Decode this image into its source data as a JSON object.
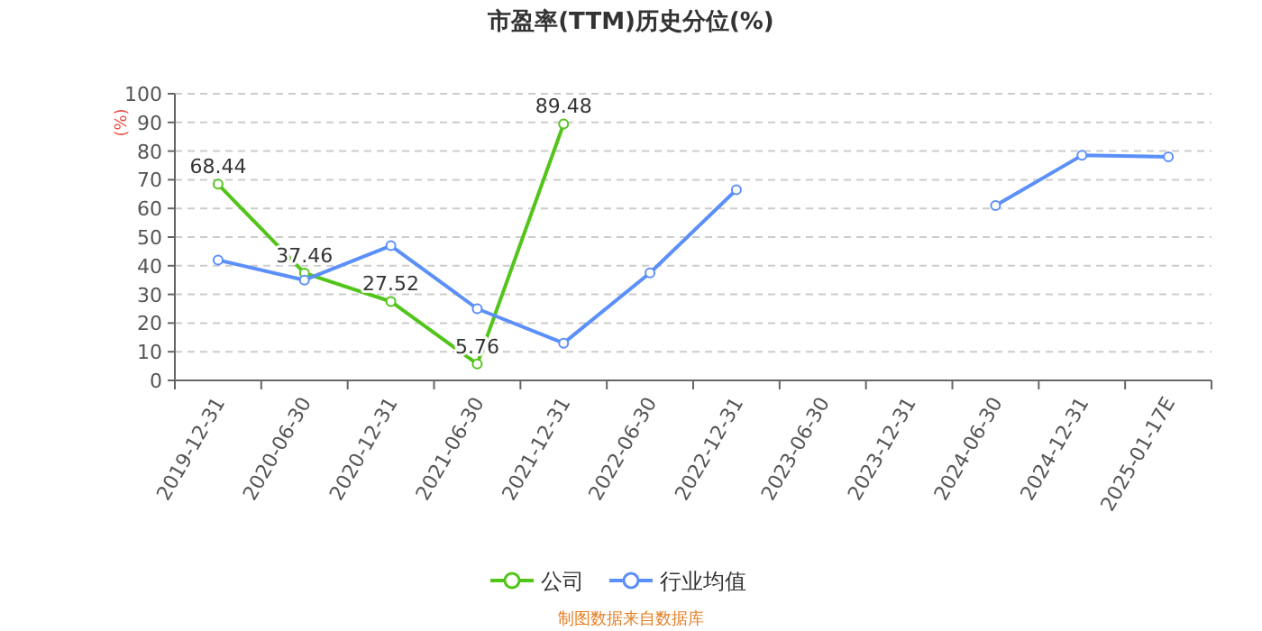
{
  "chart_data": {
    "type": "line",
    "title": "市盈率(TTM)历史分位(%)",
    "ylabel": "(%)",
    "categories": [
      "2019-12-31",
      "2020-06-30",
      "2020-12-31",
      "2021-06-30",
      "2021-12-31",
      "2022-06-30",
      "2022-12-31",
      "2023-06-30",
      "2023-12-31",
      "2024-06-30",
      "2024-12-31",
      "2025-01-17E"
    ],
    "series": [
      {
        "name": "公司",
        "color": "#52c41a",
        "values": [
          68.44,
          37.46,
          27.52,
          5.76,
          89.48,
          null,
          null,
          null,
          null,
          null,
          null,
          null
        ],
        "value_labels": [
          "68.44",
          "37.46",
          "27.52",
          "5.76",
          "89.48",
          null,
          null,
          null,
          null,
          null,
          null,
          null
        ]
      },
      {
        "name": "行业均值",
        "color": "#5b8ff9",
        "values": [
          42,
          35,
          47,
          25,
          13,
          37.5,
          66.5,
          null,
          null,
          61,
          78.5,
          78
        ]
      }
    ],
    "ylim": [
      0,
      100
    ],
    "yticks": [
      0,
      10,
      20,
      30,
      40,
      50,
      60,
      70,
      80,
      90,
      100
    ],
    "grid": "y",
    "legend": "bottom",
    "marker": "circle",
    "annotations": [
      "制图数据来自数据库"
    ]
  }
}
